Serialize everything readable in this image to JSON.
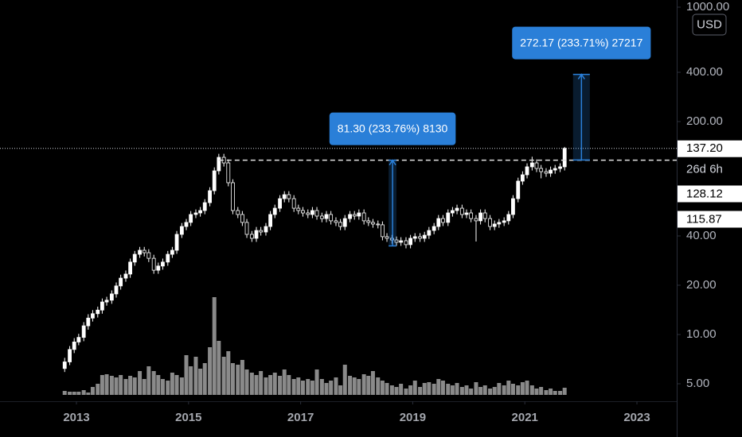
{
  "chart_data": {
    "type": "candlestick",
    "currency": "USD",
    "log": true,
    "up_color": "#ffffff",
    "down_color": "#000000",
    "wick_color": "#ffffff",
    "volume_color": "#8a8a8a",
    "measure_color": "#2a7fd8",
    "xlim": [
      2011.636,
      2023.71
    ],
    "xticks": [
      2013,
      2015,
      2017,
      2019,
      2021,
      2023
    ],
    "ylim": [
      3.91,
      1106
    ],
    "yticks": [
      {
        "value": 5,
        "label": "5.00"
      },
      {
        "value": 10,
        "label": "10.00"
      },
      {
        "value": 20,
        "label": "20.00"
      },
      {
        "value": 40,
        "label": "40.00"
      },
      {
        "value": 200,
        "label": "200.00"
      },
      {
        "value": 400,
        "label": "400.00"
      },
      {
        "value": 1000,
        "label": "1000.00"
      }
    ],
    "x": [
      2012.79,
      2012.88,
      2012.96,
      2013.04,
      2013.13,
      2013.21,
      2013.29,
      2013.38,
      2013.46,
      2013.54,
      2013.63,
      2013.71,
      2013.79,
      2013.88,
      2013.96,
      2014.04,
      2014.13,
      2014.21,
      2014.29,
      2014.38,
      2014.46,
      2014.54,
      2014.63,
      2014.71,
      2014.79,
      2014.88,
      2014.96,
      2015.04,
      2015.13,
      2015.21,
      2015.29,
      2015.38,
      2015.46,
      2015.54,
      2015.63,
      2015.71,
      2015.79,
      2015.88,
      2015.96,
      2016.04,
      2016.13,
      2016.21,
      2016.29,
      2016.38,
      2016.46,
      2016.54,
      2016.63,
      2016.71,
      2016.79,
      2016.88,
      2016.96,
      2017.04,
      2017.13,
      2017.21,
      2017.29,
      2017.38,
      2017.46,
      2017.54,
      2017.63,
      2017.71,
      2017.79,
      2017.88,
      2017.96,
      2018.04,
      2018.13,
      2018.21,
      2018.29,
      2018.38,
      2018.46,
      2018.54,
      2018.63,
      2018.71,
      2018.79,
      2018.88,
      2018.96,
      2019.04,
      2019.13,
      2019.21,
      2019.29,
      2019.38,
      2019.46,
      2019.54,
      2019.63,
      2019.71,
      2019.79,
      2019.88,
      2019.96,
      2020.04,
      2020.13,
      2020.21,
      2020.29,
      2020.38,
      2020.46,
      2020.54,
      2020.63,
      2020.71,
      2020.79,
      2020.88,
      2020.96,
      2021.04,
      2021.13,
      2021.21,
      2021.29,
      2021.38,
      2021.46,
      2021.54,
      2021.63,
      2021.71
    ],
    "ohlc": [
      [
        6.2,
        7.2,
        5.9,
        6.8
      ],
      [
        6.8,
        8.5,
        6.5,
        8.1
      ],
      [
        8.1,
        9.5,
        7.7,
        9.0
      ],
      [
        9.0,
        10.1,
        8.6,
        9.6
      ],
      [
        9.6,
        11.9,
        9.1,
        11.3
      ],
      [
        11.3,
        13.3,
        10.7,
        12.6
      ],
      [
        12.6,
        14.1,
        12.0,
        13.4
      ],
      [
        13.4,
        14.8,
        12.7,
        14.1
      ],
      [
        14.1,
        16.6,
        13.4,
        15.8
      ],
      [
        15.8,
        17.0,
        15.0,
        16.2
      ],
      [
        16.2,
        18.6,
        15.4,
        17.7
      ],
      [
        17.7,
        20.8,
        16.8,
        19.8
      ],
      [
        19.8,
        23.2,
        18.8,
        22.1
      ],
      [
        22.1,
        24.6,
        21.0,
        23.4
      ],
      [
        23.4,
        29.1,
        22.2,
        27.7
      ],
      [
        27.7,
        32.4,
        26.3,
        30.9
      ],
      [
        30.9,
        34.3,
        29.4,
        32.7
      ],
      [
        32.7,
        34.3,
        30.0,
        31.6
      ],
      [
        31.6,
        33.2,
        27.7,
        29.2
      ],
      [
        29.2,
        30.7,
        23.5,
        24.7
      ],
      [
        24.7,
        27.5,
        23.5,
        26.2
      ],
      [
        26.2,
        29.1,
        24.9,
        27.7
      ],
      [
        27.7,
        32.4,
        26.3,
        30.9
      ],
      [
        30.9,
        34.3,
        29.4,
        32.7
      ],
      [
        32.7,
        42.9,
        31.1,
        40.9
      ],
      [
        40.9,
        48.0,
        38.9,
        45.7
      ],
      [
        45.7,
        50.8,
        43.4,
        48.4
      ],
      [
        48.4,
        56.8,
        46.0,
        54.1
      ],
      [
        54.1,
        58.1,
        51.4,
        55.3
      ],
      [
        55.3,
        60.1,
        52.5,
        57.2
      ],
      [
        57.2,
        67.1,
        54.3,
        63.9
      ],
      [
        63.9,
        79.4,
        60.7,
        75.6
      ],
      [
        75.6,
        105,
        71.8,
        100
      ],
      [
        100,
        127,
        95,
        120.9
      ],
      [
        120.9,
        127,
        106.2,
        111.8
      ],
      [
        111.8,
        117.4,
        80.4,
        84.6
      ],
      [
        84.6,
        88.8,
        54.3,
        57.2
      ],
      [
        57.2,
        60.1,
        51.4,
        54.1
      ],
      [
        54.1,
        56.8,
        46.0,
        48.4
      ],
      [
        48.4,
        50.8,
        38.9,
        40.9
      ],
      [
        40.9,
        42.9,
        36.8,
        38.7
      ],
      [
        38.7,
        45.4,
        36.8,
        43.2
      ],
      [
        43.2,
        45.4,
        40.2,
        42.3
      ],
      [
        42.3,
        48.0,
        40.2,
        45.7
      ],
      [
        45.7,
        56.8,
        43.4,
        54.1
      ],
      [
        54.1,
        62.1,
        51.4,
        59.1
      ],
      [
        59.1,
        71.0,
        56.1,
        67.6
      ],
      [
        67.6,
        75.1,
        64.2,
        71.5
      ],
      [
        71.5,
        75.1,
        64.2,
        67.6
      ],
      [
        67.6,
        71.0,
        56.1,
        59.1
      ],
      [
        59.1,
        62.1,
        54.3,
        57.2
      ],
      [
        57.2,
        60.1,
        52.5,
        55.3
      ],
      [
        55.3,
        58.1,
        51.4,
        54.1
      ],
      [
        54.1,
        60.1,
        51.4,
        57.2
      ],
      [
        57.2,
        60.1,
        50.3,
        52.9
      ],
      [
        52.9,
        55.5,
        48.5,
        51.1
      ],
      [
        51.1,
        56.8,
        48.5,
        54.1
      ],
      [
        54.1,
        56.8,
        47.0,
        49.5
      ],
      [
        49.5,
        52.0,
        46.0,
        48.4
      ],
      [
        48.4,
        50.8,
        43.4,
        45.7
      ],
      [
        45.7,
        53.7,
        43.4,
        51.1
      ],
      [
        51.1,
        56.8,
        48.5,
        54.1
      ],
      [
        54.1,
        56.8,
        50.3,
        52.9
      ],
      [
        52.9,
        58.1,
        50.3,
        55.3
      ],
      [
        55.3,
        58.1,
        47.0,
        49.5
      ],
      [
        49.5,
        52.0,
        46.0,
        48.4
      ],
      [
        48.4,
        50.8,
        44.9,
        47.3
      ],
      [
        47.3,
        49.7,
        44.5,
        46.8
      ],
      [
        46.8,
        49.1,
        37.6,
        39.6
      ],
      [
        39.6,
        41.6,
        36.8,
        38.7
      ],
      [
        38.7,
        40.6,
        35.9,
        37.8
      ],
      [
        37.8,
        39.7,
        34.8,
        36.6
      ],
      [
        36.6,
        39.3,
        34.8,
        37.4
      ],
      [
        37.4,
        39.3,
        33.6,
        35.4
      ],
      [
        35.4,
        40.6,
        33.6,
        38.7
      ],
      [
        38.7,
        41.6,
        36.8,
        39.6
      ],
      [
        39.6,
        41.6,
        36.8,
        38.7
      ],
      [
        38.7,
        42.4,
        36.8,
        40.4
      ],
      [
        40.4,
        45.4,
        38.4,
        43.2
      ],
      [
        43.2,
        48.0,
        41.0,
        45.7
      ],
      [
        45.7,
        53.7,
        43.4,
        51.1
      ],
      [
        51.1,
        53.7,
        46.0,
        48.4
      ],
      [
        48.4,
        58.1,
        46.0,
        55.3
      ],
      [
        55.3,
        60.1,
        52.5,
        57.2
      ],
      [
        57.2,
        62.1,
        54.3,
        59.1
      ],
      [
        59.1,
        62.1,
        51.4,
        54.1
      ],
      [
        54.1,
        58.1,
        51.4,
        55.3
      ],
      [
        55.3,
        58.1,
        48.5,
        51.1
      ],
      [
        51.1,
        53.7,
        37.0,
        49.5
      ],
      [
        49.5,
        58.1,
        47.0,
        55.3
      ],
      [
        55.3,
        58.1,
        48.5,
        51.1
      ],
      [
        51.1,
        53.7,
        43.4,
        45.7
      ],
      [
        45.7,
        49.7,
        43.4,
        47.3
      ],
      [
        47.3,
        50.8,
        44.9,
        48.4
      ],
      [
        48.4,
        52.0,
        46.0,
        49.5
      ],
      [
        49.5,
        56.8,
        47.0,
        54.1
      ],
      [
        54.1,
        71.0,
        51.4,
        67.6
      ],
      [
        67.6,
        90.8,
        64.2,
        86.5
      ],
      [
        86.5,
        99.3,
        82.2,
        94.6
      ],
      [
        94.6,
        111.1,
        89.9,
        105.8
      ],
      [
        105.8,
        122,
        100.5,
        111.8
      ],
      [
        111.8,
        117.4,
        98.2,
        103.4
      ],
      [
        103.4,
        108.6,
        90,
        98.9
      ],
      [
        98.9,
        103.8,
        91.9,
        96.7
      ],
      [
        96.7,
        106.2,
        91.9,
        101.1
      ],
      [
        101.1,
        108.6,
        96.0,
        103.4
      ],
      [
        103.4,
        111.1,
        98.2,
        105.8
      ],
      [
        105.8,
        140,
        100.5,
        137.2
      ]
    ],
    "volume": [
      5,
      4,
      4,
      4,
      6,
      3,
      10,
      14,
      25,
      26,
      24,
      22,
      25,
      20,
      24,
      22,
      30,
      20,
      36,
      30,
      25,
      20,
      18,
      28,
      25,
      22,
      50,
      36,
      48,
      33,
      40,
      60,
      123,
      68,
      48,
      55,
      40,
      38,
      44,
      32,
      28,
      25,
      30,
      22,
      25,
      28,
      24,
      32,
      25,
      20,
      22,
      18,
      20,
      18,
      32,
      20,
      15,
      18,
      22,
      12,
      38,
      24,
      22,
      20,
      26,
      24,
      30,
      22,
      18,
      15,
      12,
      10,
      14,
      8,
      12,
      18,
      10,
      15,
      16,
      14,
      20,
      18,
      14,
      12,
      15,
      10,
      12,
      8,
      16,
      10,
      12,
      8,
      10,
      15,
      12,
      18,
      14,
      12,
      16,
      18,
      12,
      8,
      10,
      6,
      8,
      5,
      5,
      9
    ],
    "last_price": {
      "value": 137.2,
      "label": "137.20"
    },
    "countdown": "26d 6h",
    "price_tags": [
      {
        "value": 128.12,
        "label": "128.12"
      },
      {
        "value": 115.87,
        "label": "115.87"
      }
    ],
    "levels": [
      {
        "value": 116.08,
        "from": 2015.54
      }
    ],
    "measures": [
      {
        "from": 34.78,
        "to": 116.08,
        "x": [
          2018.57,
          2018.71
        ],
        "label": "81.30 (233.76%) 8130"
      },
      {
        "from": 116.46,
        "to": 388.63,
        "x": [
          2021.86,
          2022.16
        ],
        "label": "272.17 (233.71%) 27217"
      }
    ]
  }
}
